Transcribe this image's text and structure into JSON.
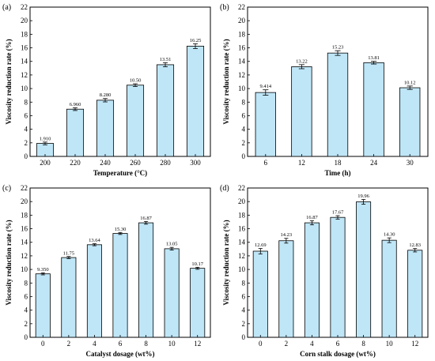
{
  "chart_data": [
    {
      "type": "bar",
      "panel_label": "(a)",
      "categories": [
        "200",
        "220",
        "240",
        "260",
        "280",
        "300"
      ],
      "values": [
        1.91,
        6.96,
        8.28,
        10.5,
        13.51,
        16.25
      ],
      "data_labels": [
        "1.910",
        "6.960",
        "8.280",
        "10.50",
        "13.51",
        "16.25"
      ],
      "errors": [
        0.2,
        0.2,
        0.25,
        0.2,
        0.3,
        0.35
      ],
      "xlabel": "Temperature (°C)",
      "ylabel": "Viscosity reduction rate (%)",
      "ylim": [
        0,
        22
      ],
      "yticks": [
        "0",
        "2",
        "4",
        "6",
        "8",
        "10",
        "12",
        "14",
        "16",
        "18",
        "20",
        "22"
      ]
    },
    {
      "type": "bar",
      "panel_label": "(b)",
      "categories": [
        "6",
        "12",
        "18",
        "24",
        "30"
      ],
      "values": [
        9.414,
        13.22,
        15.23,
        13.81,
        10.12
      ],
      "data_labels": [
        "9.414",
        "13.22",
        "15.23",
        "13.81",
        "10.12"
      ],
      "errors": [
        0.4,
        0.3,
        0.35,
        0.2,
        0.25
      ],
      "xlabel": "Time (h)",
      "ylabel": "Viscosity reduction rate (%)",
      "ylim": [
        0,
        22
      ],
      "yticks": [
        "0",
        "2",
        "4",
        "6",
        "8",
        "10",
        "12",
        "14",
        "16",
        "18",
        "20",
        "22"
      ]
    },
    {
      "type": "bar",
      "panel_label": "(c)",
      "categories": [
        "0",
        "2",
        "4",
        "6",
        "8",
        "10",
        "12"
      ],
      "values": [
        9.35,
        11.75,
        13.64,
        15.3,
        16.87,
        13.05,
        10.17
      ],
      "data_labels": [
        "9.350",
        "11.75",
        "13.64",
        "15.30",
        "16.87",
        "13.05",
        "10.17"
      ],
      "errors": [
        0.15,
        0.15,
        0.15,
        0.15,
        0.2,
        0.2,
        0.15
      ],
      "xlabel": "Catalyst dosage (wt%)",
      "ylabel": "Viscosity reduction rate (%)",
      "ylim": [
        0,
        22
      ],
      "yticks": [
        "0",
        "2",
        "4",
        "6",
        "8",
        "10",
        "12",
        "14",
        "16",
        "18",
        "20",
        "22"
      ]
    },
    {
      "type": "bar",
      "panel_label": "(d)",
      "categories": [
        "0",
        "2",
        "4",
        "6",
        "8",
        "10",
        "12"
      ],
      "values": [
        12.69,
        14.23,
        16.87,
        17.67,
        19.96,
        14.3,
        12.83
      ],
      "data_labels": [
        "12.69",
        "14.23",
        "16.87",
        "17.67",
        "19.96",
        "14.30",
        "12.83"
      ],
      "errors": [
        0.4,
        0.35,
        0.3,
        0.25,
        0.35,
        0.35,
        0.25
      ],
      "xlabel": "Corn stalk dosage (wt%)",
      "ylabel": "Viscosity reduction rate (%)",
      "ylim": [
        0,
        22
      ],
      "yticks": [
        "0",
        "2",
        "4",
        "6",
        "8",
        "10",
        "12",
        "14",
        "16",
        "18",
        "20",
        "22"
      ]
    }
  ]
}
